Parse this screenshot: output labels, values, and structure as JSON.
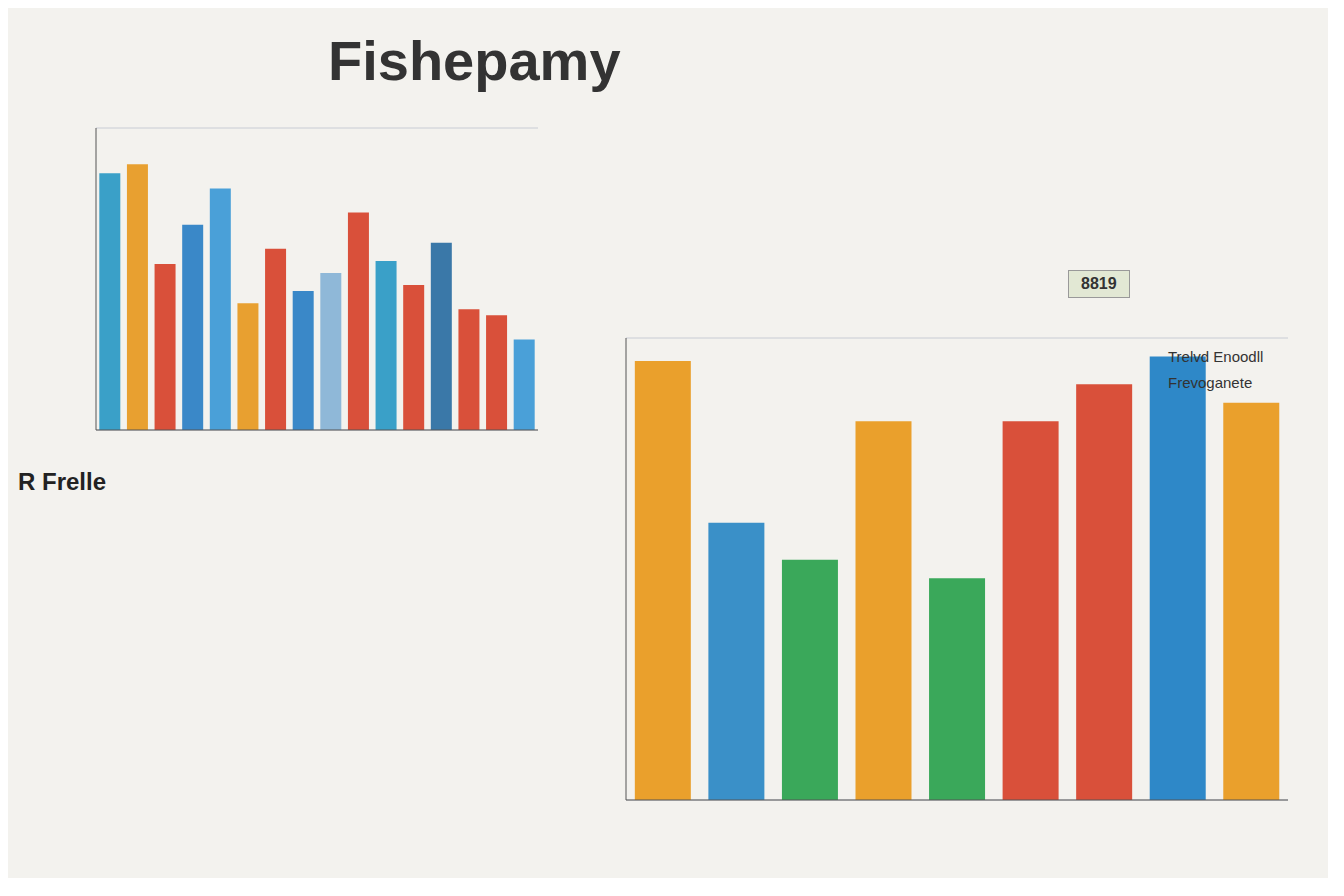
{
  "chart_data": [
    {
      "type": "bar",
      "title": "Fishepamy",
      "annotations": [
        "R Frelle"
      ],
      "categories": [
        null,
        null,
        null,
        null,
        null,
        null,
        null,
        null,
        null,
        null,
        null,
        null,
        null,
        null,
        null,
        null
      ],
      "values": [
        85,
        88,
        55,
        68,
        80,
        42,
        60,
        46,
        52,
        72,
        56,
        48,
        62,
        40,
        38,
        30
      ],
      "colors": [
        "#3aa0c8",
        "#e8a030",
        "#d9503a",
        "#3a88c8",
        "#4aa0d8",
        "#e8a030",
        "#d9503a",
        "#3a88c8",
        "#8fb8d8",
        "#d9503a",
        "#3aa0c8",
        "#d9503a",
        "#3a78a8",
        "#d9503a",
        "#d9503a",
        "#4aa0d8"
      ],
      "ylim": [
        0,
        100
      ],
      "yticks": [
        0,
        20,
        40,
        60,
        80,
        100
      ],
      "grid": true,
      "tick_labels": false
    },
    {
      "type": "bar",
      "annotations": [
        "8819",
        "Trelvd Enoodll",
        "Frevoganete"
      ],
      "categories": [
        null,
        null,
        null,
        null,
        null,
        null,
        null,
        null,
        null
      ],
      "values": [
        95,
        60,
        52,
        82,
        48,
        82,
        90,
        96,
        86
      ],
      "colors": [
        "#eaa02c",
        "#3a90c8",
        "#3aa85a",
        "#eaa02c",
        "#3aa85a",
        "#d9503a",
        "#d9503a",
        "#2e88c8",
        "#eaa02c"
      ],
      "ylim": [
        0,
        100
      ],
      "yticks": [
        0,
        20,
        40,
        60,
        80,
        100
      ],
      "grid": true,
      "tick_labels": false
    }
  ]
}
